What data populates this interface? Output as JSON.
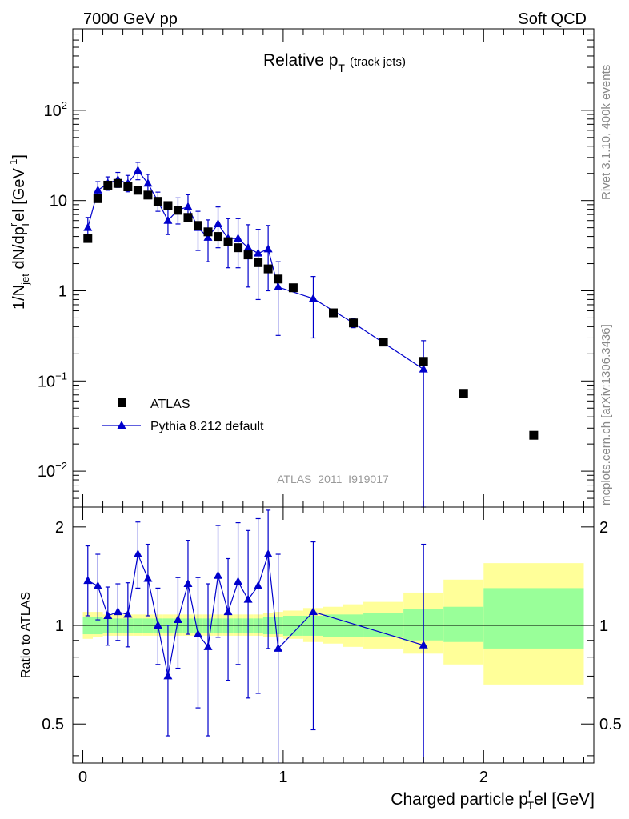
{
  "header": {
    "left": "7000 GeV pp",
    "right": "Soft QCD"
  },
  "side_labels": {
    "top": "Rivet 3.1.10,  400k events",
    "bottom": "mcplots.cern.ch [arXiv:1306.3436]"
  },
  "colors": {
    "data": "#000000",
    "mc": "#0000cc",
    "band_inner": "#99ff99",
    "band_outer": "#ffff99"
  },
  "chart_data": [
    {
      "type": "scatter",
      "title": "Relative p_T (track jets)",
      "title_main": "Relative p",
      "title_sub": "T",
      "title_suffix": "(track jets)",
      "ylabel": "1/N_jet dN/dp_T^rel [GeV^-1]",
      "ylabel_parts": {
        "a": "1/N",
        "a_sub": "jet",
        "b": " dN/dp",
        "b_sup": "r",
        "b_sub": "T",
        "c": "el [GeV",
        "c_sup": "-1",
        "d": "]"
      },
      "yscale": "log",
      "ylim": [
        0.004,
        800
      ],
      "xlim": [
        -0.05,
        2.55
      ],
      "ytick_labels": [
        {
          "value": 0.01,
          "base": "10",
          "exp": "−2"
        },
        {
          "value": 0.1,
          "base": "10",
          "exp": "−1"
        },
        {
          "value": 1,
          "label": "1"
        },
        {
          "value": 10,
          "label": "10"
        },
        {
          "value": 100,
          "base": "10",
          "exp": "2"
        }
      ],
      "analysis_label": "ATLAS_2011_I919017",
      "legend": {
        "position": "bottom-left",
        "entries": [
          "ATLAS",
          "Pythia 8.212 default"
        ]
      },
      "series": [
        {
          "name": "ATLAS",
          "marker": "square",
          "x": [
            0.025,
            0.075,
            0.125,
            0.175,
            0.225,
            0.275,
            0.325,
            0.375,
            0.425,
            0.475,
            0.525,
            0.575,
            0.625,
            0.675,
            0.725,
            0.775,
            0.825,
            0.875,
            0.925,
            0.975,
            1.05,
            1.25,
            1.35,
            1.5,
            1.7,
            1.9,
            2.25
          ],
          "y": [
            3.8,
            10.5,
            14.8,
            15.5,
            14.2,
            13.0,
            11.5,
            9.8,
            8.8,
            7.8,
            6.5,
            5.3,
            4.5,
            4.0,
            3.5,
            3.0,
            2.5,
            2.05,
            1.75,
            1.35,
            1.08,
            0.57,
            0.44,
            0.27,
            0.165,
            0.073,
            0.025
          ]
        },
        {
          "name": "Pythia 8.212 default",
          "marker": "triangle",
          "x": [
            0.025,
            0.075,
            0.125,
            0.175,
            0.225,
            0.275,
            0.325,
            0.375,
            0.425,
            0.475,
            0.525,
            0.575,
            0.625,
            0.675,
            0.725,
            0.775,
            0.825,
            0.875,
            0.925,
            0.975,
            1.15,
            1.35,
            1.7
          ],
          "y": [
            5.0,
            13.0,
            15.5,
            17.0,
            15.5,
            21.5,
            15.5,
            9.8,
            6.0,
            7.9,
            8.5,
            5.0,
            3.9,
            5.5,
            3.8,
            3.8,
            3.0,
            2.6,
            2.9,
            1.1,
            0.82,
            0.44,
            0.135
          ],
          "err_low": [
            1.2,
            2.8,
            2.5,
            3.0,
            3.0,
            4.5,
            3.5,
            2.2,
            1.8,
            2.4,
            2.7,
            2.2,
            1.8,
            2.5,
            2.0,
            2.0,
            1.9,
            1.8,
            1.9,
            0.78,
            0.52,
            0.05,
            0.135
          ],
          "err_high": [
            1.5,
            3.2,
            2.8,
            3.5,
            3.5,
            5.0,
            4.0,
            2.6,
            2.2,
            2.8,
            3.1,
            2.6,
            2.2,
            3.0,
            2.5,
            2.5,
            2.4,
            2.2,
            2.4,
            1.0,
            0.62,
            0.05,
            0.145
          ]
        }
      ]
    },
    {
      "type": "line",
      "title": "",
      "xlabel": "Charged particle p_T^rel [GeV]",
      "xlabel_parts": {
        "a": "Charged particle p",
        "a_sup": "r",
        "a_sub": "T",
        "b": "el [GeV]"
      },
      "ylabel": "Ratio to ATLAS",
      "ylim": [
        0.38,
        2.3
      ],
      "xlim": [
        -0.05,
        2.55
      ],
      "x_tick_labels": [
        "0",
        "1",
        "2"
      ],
      "y_tick_labels": [
        "0.5",
        "1",
        "2"
      ],
      "band_edges": [
        0.0,
        0.05,
        0.1,
        0.15,
        0.2,
        0.25,
        0.3,
        0.35,
        0.4,
        0.45,
        0.5,
        0.55,
        0.6,
        0.65,
        0.7,
        0.75,
        0.8,
        0.85,
        0.9,
        0.95,
        1.0,
        1.1,
        1.2,
        1.3,
        1.4,
        1.6,
        1.8,
        2.0,
        2.5
      ],
      "band_inner": [
        [
          0.94,
          1.06
        ],
        [
          0.94,
          1.06
        ],
        [
          0.95,
          1.05
        ],
        [
          0.95,
          1.05
        ],
        [
          0.95,
          1.05
        ],
        [
          0.95,
          1.05
        ],
        [
          0.95,
          1.05
        ],
        [
          0.95,
          1.05
        ],
        [
          0.95,
          1.05
        ],
        [
          0.95,
          1.05
        ],
        [
          0.95,
          1.05
        ],
        [
          0.95,
          1.05
        ],
        [
          0.95,
          1.05
        ],
        [
          0.95,
          1.05
        ],
        [
          0.95,
          1.05
        ],
        [
          0.95,
          1.05
        ],
        [
          0.95,
          1.05
        ],
        [
          0.95,
          1.05
        ],
        [
          0.94,
          1.06
        ],
        [
          0.94,
          1.06
        ],
        [
          0.93,
          1.07
        ],
        [
          0.93,
          1.07
        ],
        [
          0.92,
          1.08
        ],
        [
          0.92,
          1.08
        ],
        [
          0.92,
          1.09
        ],
        [
          0.9,
          1.12
        ],
        [
          0.89,
          1.14
        ],
        [
          0.85,
          1.3
        ]
      ],
      "band_outer": [
        [
          0.91,
          1.1
        ],
        [
          0.92,
          1.1
        ],
        [
          0.93,
          1.08
        ],
        [
          0.93,
          1.08
        ],
        [
          0.93,
          1.08
        ],
        [
          0.93,
          1.08
        ],
        [
          0.93,
          1.08
        ],
        [
          0.93,
          1.08
        ],
        [
          0.93,
          1.08
        ],
        [
          0.93,
          1.08
        ],
        [
          0.93,
          1.08
        ],
        [
          0.93,
          1.08
        ],
        [
          0.93,
          1.08
        ],
        [
          0.93,
          1.08
        ],
        [
          0.93,
          1.08
        ],
        [
          0.93,
          1.08
        ],
        [
          0.93,
          1.08
        ],
        [
          0.93,
          1.08
        ],
        [
          0.92,
          1.09
        ],
        [
          0.92,
          1.1
        ],
        [
          0.91,
          1.11
        ],
        [
          0.89,
          1.13
        ],
        [
          0.88,
          1.14
        ],
        [
          0.86,
          1.16
        ],
        [
          0.85,
          1.18
        ],
        [
          0.82,
          1.26
        ],
        [
          0.76,
          1.38
        ],
        [
          0.66,
          1.55
        ]
      ],
      "series": [
        {
          "name": "Pythia 8.212 default / ATLAS",
          "marker": "triangle",
          "x": [
            0.025,
            0.075,
            0.125,
            0.175,
            0.225,
            0.275,
            0.325,
            0.375,
            0.425,
            0.475,
            0.525,
            0.575,
            0.625,
            0.675,
            0.725,
            0.775,
            0.825,
            0.875,
            0.925,
            0.975,
            1.15,
            1.7
          ],
          "y": [
            1.37,
            1.32,
            1.07,
            1.1,
            1.08,
            1.65,
            1.39,
            1.0,
            0.7,
            1.04,
            1.34,
            0.94,
            0.86,
            1.42,
            1.1,
            1.36,
            1.2,
            1.32,
            1.65,
            0.85,
            1.1,
            0.87
          ],
          "err_low": [
            0.3,
            0.28,
            0.2,
            0.2,
            0.22,
            0.35,
            0.32,
            0.24,
            0.24,
            0.3,
            0.4,
            0.38,
            0.4,
            0.5,
            0.42,
            0.6,
            0.6,
            0.7,
            0.8,
            0.85,
            0.62,
            0.87
          ],
          "err_high": [
            0.38,
            0.33,
            0.24,
            0.24,
            0.27,
            0.42,
            0.38,
            0.3,
            0.3,
            0.36,
            0.48,
            0.46,
            0.48,
            0.6,
            0.5,
            0.7,
            0.75,
            0.8,
            0.6,
            0.8,
            0.7,
            0.9
          ]
        }
      ]
    }
  ]
}
